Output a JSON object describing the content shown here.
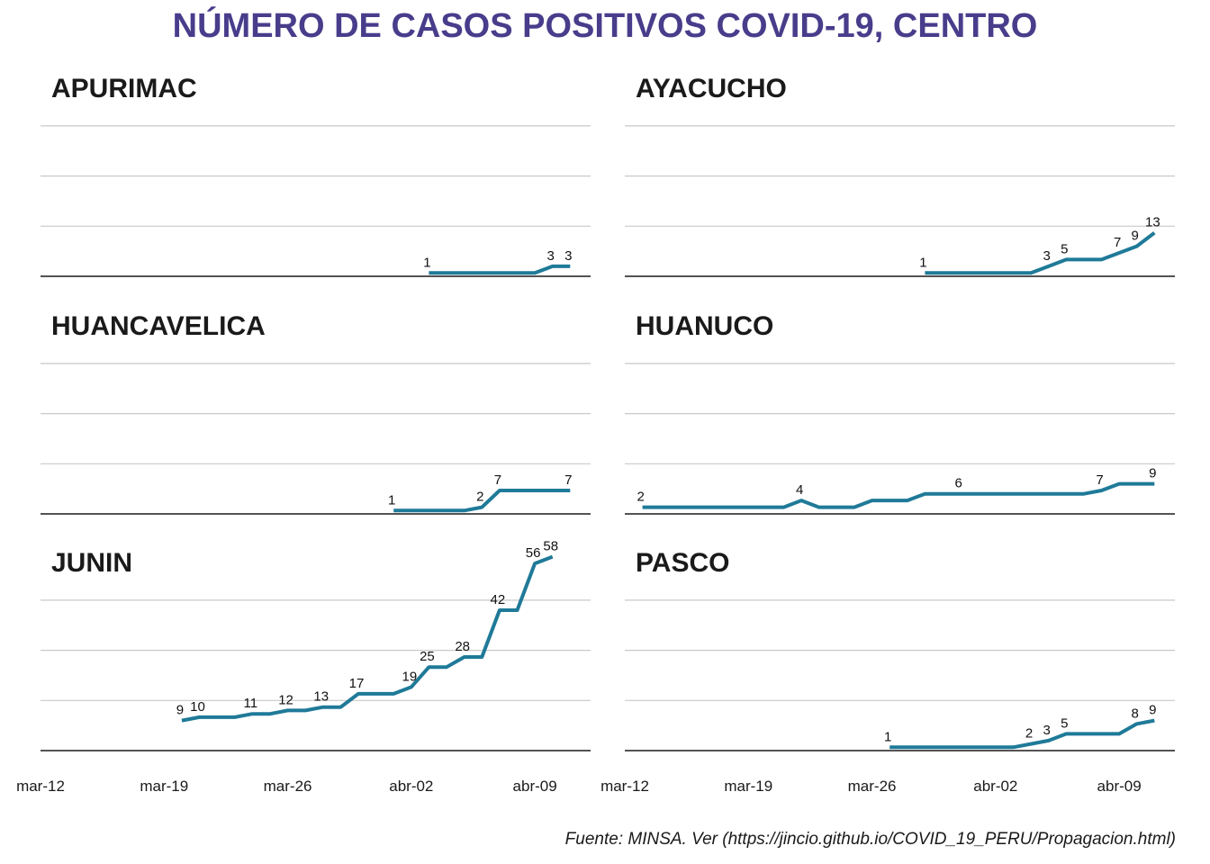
{
  "title": "NÚMERO DE CASOS POSITIVOS COVID-19, CENTRO",
  "source": "Fuente: MINSA. Ver (https://jincio.github.io/COVID_19_PERU/Propagacion.html)",
  "colors": {
    "title": "#483D8B",
    "line": "#1F7A98",
    "grid": "#c9c9c9",
    "axis": "#1a1a1a"
  },
  "chart_data": {
    "type": "line",
    "title": "NÚMERO DE CASOS POSITIVOS COVID-19, CENTRO",
    "xlabel": "",
    "ylabel": "",
    "x_axis": {
      "start": "2020-03-12",
      "end": "2020-04-12",
      "ticks": [
        {
          "day": 0,
          "label": "mar-12"
        },
        {
          "day": 7,
          "label": "mar-19"
        },
        {
          "day": 14,
          "label": "mar-26"
        },
        {
          "day": 21,
          "label": "abr-02"
        },
        {
          "day": 28,
          "label": "abr-09"
        }
      ]
    },
    "ylim": [
      0,
      60
    ],
    "y_gridlines": [
      0,
      15,
      30,
      45
    ],
    "panels": [
      {
        "name": "APURIMAC",
        "points": [
          {
            "day": 22,
            "value": 1
          },
          {
            "day": 23,
            "value": 1
          },
          {
            "day": 24,
            "value": 1
          },
          {
            "day": 25,
            "value": 1
          },
          {
            "day": 26,
            "value": 1
          },
          {
            "day": 27,
            "value": 1
          },
          {
            "day": 28,
            "value": 1
          },
          {
            "day": 29,
            "value": 3
          },
          {
            "day": 30,
            "value": 3
          }
        ],
        "labels": [
          {
            "day": 22,
            "text": "1"
          },
          {
            "day": 29,
            "text": "3"
          },
          {
            "day": 30,
            "text": "3"
          }
        ]
      },
      {
        "name": "AYACUCHO",
        "points": [
          {
            "day": 17,
            "value": 1
          },
          {
            "day": 18,
            "value": 1
          },
          {
            "day": 19,
            "value": 1
          },
          {
            "day": 20,
            "value": 1
          },
          {
            "day": 21,
            "value": 1
          },
          {
            "day": 22,
            "value": 1
          },
          {
            "day": 23,
            "value": 1
          },
          {
            "day": 24,
            "value": 3
          },
          {
            "day": 25,
            "value": 5
          },
          {
            "day": 26,
            "value": 5
          },
          {
            "day": 27,
            "value": 5
          },
          {
            "day": 28,
            "value": 7
          },
          {
            "day": 29,
            "value": 9
          },
          {
            "day": 30,
            "value": 13
          }
        ],
        "labels": [
          {
            "day": 17,
            "text": "1"
          },
          {
            "day": 24,
            "text": "3"
          },
          {
            "day": 25,
            "text": "5"
          },
          {
            "day": 28,
            "text": "7"
          },
          {
            "day": 29,
            "text": "9"
          },
          {
            "day": 30,
            "text": "13"
          }
        ]
      },
      {
        "name": "HUANCAVELICA",
        "points": [
          {
            "day": 20,
            "value": 1
          },
          {
            "day": 21,
            "value": 1
          },
          {
            "day": 22,
            "value": 1
          },
          {
            "day": 23,
            "value": 1
          },
          {
            "day": 24,
            "value": 1
          },
          {
            "day": 25,
            "value": 2
          },
          {
            "day": 26,
            "value": 7
          },
          {
            "day": 27,
            "value": 7
          },
          {
            "day": 28,
            "value": 7
          },
          {
            "day": 29,
            "value": 7
          },
          {
            "day": 30,
            "value": 7
          }
        ],
        "labels": [
          {
            "day": 20,
            "text": "1"
          },
          {
            "day": 25,
            "text": "2"
          },
          {
            "day": 26,
            "text": "7"
          },
          {
            "day": 30,
            "text": "7"
          }
        ]
      },
      {
        "name": "HUANUCO",
        "points": [
          {
            "day": 1,
            "value": 2
          },
          {
            "day": 2,
            "value": 2
          },
          {
            "day": 3,
            "value": 2
          },
          {
            "day": 4,
            "value": 2
          },
          {
            "day": 5,
            "value": 2
          },
          {
            "day": 6,
            "value": 2
          },
          {
            "day": 7,
            "value": 2
          },
          {
            "day": 8,
            "value": 2
          },
          {
            "day": 9,
            "value": 2
          },
          {
            "day": 10,
            "value": 4
          },
          {
            "day": 11,
            "value": 2
          },
          {
            "day": 12,
            "value": 2
          },
          {
            "day": 13,
            "value": 2
          },
          {
            "day": 14,
            "value": 4
          },
          {
            "day": 15,
            "value": 4
          },
          {
            "day": 16,
            "value": 4
          },
          {
            "day": 17,
            "value": 6
          },
          {
            "day": 18,
            "value": 6
          },
          {
            "day": 19,
            "value": 6
          },
          {
            "day": 20,
            "value": 6
          },
          {
            "day": 21,
            "value": 6
          },
          {
            "day": 22,
            "value": 6
          },
          {
            "day": 23,
            "value": 6
          },
          {
            "day": 24,
            "value": 6
          },
          {
            "day": 25,
            "value": 6
          },
          {
            "day": 26,
            "value": 6
          },
          {
            "day": 27,
            "value": 7
          },
          {
            "day": 28,
            "value": 9
          },
          {
            "day": 29,
            "value": 9
          },
          {
            "day": 30,
            "value": 9
          }
        ],
        "labels": [
          {
            "day": 1,
            "text": "2"
          },
          {
            "day": 10,
            "text": "4"
          },
          {
            "day": 19,
            "text": "6"
          },
          {
            "day": 27,
            "text": "7"
          },
          {
            "day": 30,
            "text": "9"
          }
        ]
      },
      {
        "name": "JUNIN",
        "points": [
          {
            "day": 8,
            "value": 9
          },
          {
            "day": 9,
            "value": 10
          },
          {
            "day": 10,
            "value": 10
          },
          {
            "day": 11,
            "value": 10
          },
          {
            "day": 12,
            "value": 11
          },
          {
            "day": 13,
            "value": 11
          },
          {
            "day": 14,
            "value": 12
          },
          {
            "day": 15,
            "value": 12
          },
          {
            "day": 16,
            "value": 13
          },
          {
            "day": 17,
            "value": 13
          },
          {
            "day": 18,
            "value": 17
          },
          {
            "day": 19,
            "value": 17
          },
          {
            "day": 20,
            "value": 17
          },
          {
            "day": 21,
            "value": 19
          },
          {
            "day": 22,
            "value": 25
          },
          {
            "day": 23,
            "value": 25
          },
          {
            "day": 24,
            "value": 28
          },
          {
            "day": 25,
            "value": 28
          },
          {
            "day": 26,
            "value": 42
          },
          {
            "day": 27,
            "value": 42
          },
          {
            "day": 28,
            "value": 56
          },
          {
            "day": 29,
            "value": 58
          }
        ],
        "labels": [
          {
            "day": 8,
            "text": "9"
          },
          {
            "day": 9,
            "text": "10"
          },
          {
            "day": 12,
            "text": "11"
          },
          {
            "day": 14,
            "text": "12"
          },
          {
            "day": 16,
            "text": "13"
          },
          {
            "day": 18,
            "text": "17"
          },
          {
            "day": 21,
            "text": "19"
          },
          {
            "day": 22,
            "text": "25"
          },
          {
            "day": 24,
            "text": "28"
          },
          {
            "day": 26,
            "text": "42"
          },
          {
            "day": 28,
            "text": "56"
          },
          {
            "day": 29,
            "text": "58"
          }
        ]
      },
      {
        "name": "PASCO",
        "points": [
          {
            "day": 15,
            "value": 1
          },
          {
            "day": 16,
            "value": 1
          },
          {
            "day": 17,
            "value": 1
          },
          {
            "day": 18,
            "value": 1
          },
          {
            "day": 19,
            "value": 1
          },
          {
            "day": 20,
            "value": 1
          },
          {
            "day": 21,
            "value": 1
          },
          {
            "day": 22,
            "value": 1
          },
          {
            "day": 23,
            "value": 2
          },
          {
            "day": 24,
            "value": 3
          },
          {
            "day": 25,
            "value": 5
          },
          {
            "day": 26,
            "value": 5
          },
          {
            "day": 27,
            "value": 5
          },
          {
            "day": 28,
            "value": 5
          },
          {
            "day": 29,
            "value": 8
          },
          {
            "day": 30,
            "value": 9
          }
        ],
        "labels": [
          {
            "day": 15,
            "text": "1"
          },
          {
            "day": 23,
            "text": "2"
          },
          {
            "day": 24,
            "text": "3"
          },
          {
            "day": 25,
            "text": "5"
          },
          {
            "day": 29,
            "text": "8"
          },
          {
            "day": 30,
            "text": "9"
          }
        ]
      }
    ]
  }
}
